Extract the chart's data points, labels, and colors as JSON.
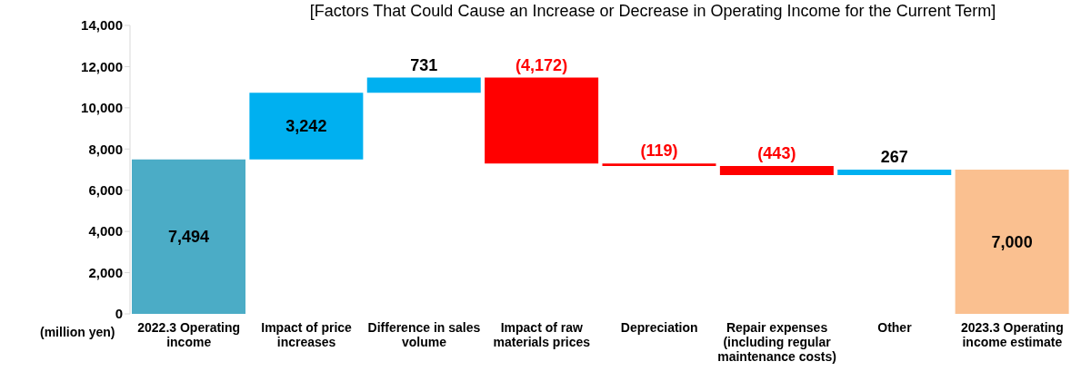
{
  "chart_data": {
    "type": "bar",
    "title": "[Factors That Could Cause an Increase or Decrease in Operating Income for the Current Term]",
    "xlabel": "(million yen)",
    "categories": [
      "2022.3 Operating income",
      "Impact of price increases",
      "Difference in sales volume",
      "Impact of raw materials prices",
      "Depreciation",
      "Repair expenses (including regular maintenance costs)",
      "Other",
      "2023.3 Operating income estimate"
    ],
    "values": [
      7494,
      3242,
      731,
      -4172,
      -119,
      -443,
      267,
      7000
    ],
    "base": [
      0,
      7494,
      10736,
      11467,
      7295,
      7176,
      6733,
      0
    ],
    "colors": [
      "#4bacc6",
      "#00b0f0",
      "#00b0f0",
      "#ff0000",
      "#ff0000",
      "#ff0000",
      "#00b0f0",
      "#fac090"
    ],
    "value_labels": [
      "7,494",
      "3,242",
      "731",
      "(4,172)",
      "(119)",
      "(443)",
      "267",
      "7,000"
    ],
    "ylim": [
      0,
      14000
    ],
    "yticks": [
      0,
      {
        "value": 2000,
        "label": "2,000"
      },
      {
        "value": 4000,
        "label": "4,000"
      },
      {
        "value": 6000,
        "label": "6,000"
      },
      {
        "value": 8000,
        "label": "8,000"
      },
      {
        "value": 10000,
        "label": "10,000"
      },
      {
        "value": 12000,
        "label": "12,000"
      },
      {
        "value": 14000,
        "label": "14,000"
      }
    ]
  }
}
